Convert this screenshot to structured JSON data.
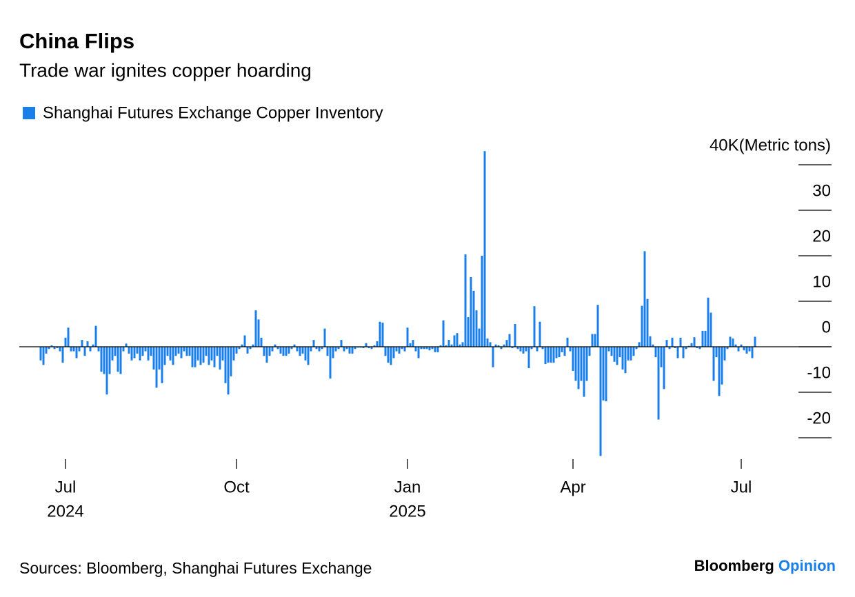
{
  "chart_data": {
    "type": "bar",
    "title": "China Flips",
    "subtitle": "Trade war ignites copper hoarding",
    "source": "Sources: Bloomberg, Shanghai Futures Exchange",
    "logo": {
      "brand": "Bloomberg",
      "suffix": "Opinion"
    },
    "ylim": [
      -24.5,
      43
    ],
    "yticks": [
      -20,
      -10,
      0,
      10,
      20,
      30,
      {
        "value": 40,
        "label": "40K(Metric tons)"
      }
    ],
    "categories": [
      null,
      null,
      null,
      null,
      null,
      null,
      null,
      null,
      null,
      [
        "Jul",
        "2024"
      ],
      null,
      null,
      null,
      null,
      null,
      null,
      null,
      null,
      null,
      null,
      null,
      null,
      null,
      null,
      null,
      null,
      null,
      null,
      null,
      null,
      null,
      null,
      null,
      null,
      null,
      null,
      null,
      null,
      null,
      null,
      null,
      null,
      null,
      null,
      null,
      null,
      null,
      null,
      null,
      null,
      null,
      null,
      null,
      null,
      null,
      null,
      null,
      null,
      null,
      null,
      null,
      null,
      null,
      null,
      null,
      null,
      null,
      null,
      null,
      null,
      null,
      [
        "Oct"
      ],
      null,
      null,
      null,
      null,
      null,
      null,
      null,
      null,
      null,
      null,
      null,
      null,
      null,
      null,
      null,
      null,
      null,
      null,
      null,
      null,
      null,
      null,
      null,
      null,
      null,
      null,
      null,
      null,
      null,
      null,
      null,
      null,
      null,
      null,
      null,
      null,
      null,
      null,
      null,
      null,
      null,
      null,
      null,
      null,
      null,
      null,
      null,
      null,
      null,
      null,
      null,
      null,
      null,
      null,
      null,
      null,
      null,
      null,
      null,
      null,
      null,
      [
        "Jan",
        "2025"
      ],
      null,
      null,
      null,
      null,
      null,
      null,
      null,
      null,
      null,
      null,
      null,
      null,
      null,
      null,
      null,
      null,
      null,
      null,
      null,
      null,
      null,
      null,
      null,
      null,
      null,
      null,
      null,
      null,
      null,
      null,
      null,
      null,
      null,
      null,
      null,
      null,
      null,
      null,
      null,
      null,
      null,
      null,
      null,
      null,
      null,
      null,
      null,
      null,
      null,
      null,
      null,
      null,
      null,
      null,
      null,
      null,
      null,
      null,
      null,
      [
        "Apr"
      ],
      null,
      null,
      null,
      null,
      null,
      null,
      null,
      null,
      null,
      null,
      null,
      null,
      null,
      null,
      null,
      null,
      null,
      null,
      null,
      null,
      null,
      null,
      null,
      null,
      null,
      null,
      null,
      null,
      null,
      null,
      null,
      null,
      null,
      null,
      null,
      null,
      null,
      null,
      null,
      null,
      null,
      null,
      null,
      null,
      null,
      null,
      null,
      null,
      null,
      null,
      null,
      null,
      null,
      null,
      null,
      null,
      null,
      null,
      null,
      null,
      [
        "Jul"
      ],
      null,
      null,
      null,
      null,
      null
    ],
    "series": [
      {
        "name": "Shanghai Futures Exchange Copper Inventory",
        "color": "#1a7fe8",
        "values": [
          -3,
          -4,
          -1.5,
          -0.5,
          0.3,
          -0.5,
          -0.3,
          -1,
          -3.5,
          2,
          4.2,
          -1,
          -1,
          -2.5,
          -1,
          1.5,
          -2,
          1.2,
          -1,
          0.5,
          4.6,
          -1,
          -5.5,
          -6,
          -10.5,
          -6,
          -3,
          -2,
          -5.5,
          -6,
          -1,
          0.7,
          -1.5,
          -3,
          -2.5,
          -1.5,
          -3,
          -2,
          -1,
          -3,
          -2,
          -5,
          -9,
          -5,
          -8,
          -4,
          -2,
          -3,
          -4,
          -2,
          -1.5,
          -2.5,
          -1,
          -2,
          -2,
          -4.5,
          -4.5,
          -3,
          -4,
          -3.5,
          -2,
          -4,
          -3,
          -4.5,
          -2,
          -5,
          -3,
          -8,
          -10.5,
          -6.5,
          -3,
          -1.5,
          -0.5,
          0.5,
          2.5,
          -1.5,
          -0.5,
          0.5,
          8,
          6,
          2,
          -2,
          -3.5,
          -2,
          -1,
          0.5,
          -0.5,
          -1.5,
          -2,
          -2,
          -1.5,
          -0.5,
          0.5,
          -1,
          -2,
          -1.5,
          -3,
          -4,
          -1,
          1.5,
          -0.5,
          -1,
          -0.5,
          4,
          -2,
          -7,
          -2.5,
          -1,
          -0.5,
          1.5,
          -1,
          -0.5,
          -1.5,
          -1.5,
          -0.5,
          -0.2,
          -0.2,
          -0.3,
          0.8,
          -0.3,
          -0.5,
          0.3,
          1.2,
          5.5,
          5.3,
          -2,
          -3.5,
          -4,
          -2.5,
          -1,
          -1.5,
          -0.5,
          -1,
          4.2,
          0.8,
          1.5,
          -1,
          -2.5,
          -0.5,
          -0.5,
          -0.5,
          -0.8,
          -0.5,
          -1.2,
          -1.2,
          0.3,
          5.8,
          0.3,
          1.5,
          0.5,
          2.5,
          3,
          0.5,
          1,
          20.3,
          6.5,
          15.3,
          12.3,
          8,
          4,
          20,
          43,
          1.8,
          1,
          -4.5,
          0.5,
          0.3,
          -0.5,
          0.5,
          1.5,
          2.8,
          -0.3,
          5,
          -0.5,
          -1,
          -1.5,
          -1,
          -4.7,
          -0.5,
          8.9,
          -1,
          5.5,
          -0.5,
          -3.8,
          -3.5,
          -3.5,
          -3.5,
          -2.5,
          -2.3,
          -1.2,
          -2,
          2,
          -1,
          -5.3,
          -7.5,
          -9.3,
          -7.5,
          -11,
          -7.5,
          -2,
          2.8,
          2.8,
          9.2,
          -24,
          -11.8,
          -12,
          -1,
          -2,
          -3.3,
          -4,
          -2.3,
          -5,
          -5.8,
          -3,
          -3,
          -2,
          -0.5,
          1,
          9,
          21,
          10.5,
          2.3,
          0.5,
          -2.3,
          -16,
          -4.5,
          -9.3,
          1.5,
          -0.5,
          2,
          -0.3,
          -2.5,
          2,
          -2.5,
          -0.5,
          0.2,
          0.8,
          2.1,
          -0.3,
          -0.5,
          3.5,
          3.5,
          10.8,
          7.5,
          -7.5,
          -2.3,
          -10.8,
          -8.3,
          -3,
          -0.5,
          2.2,
          1.8,
          0.5,
          -1,
          0.5,
          -0.8,
          -1.5,
          -1,
          -2.5,
          2.2
        ]
      }
    ]
  }
}
